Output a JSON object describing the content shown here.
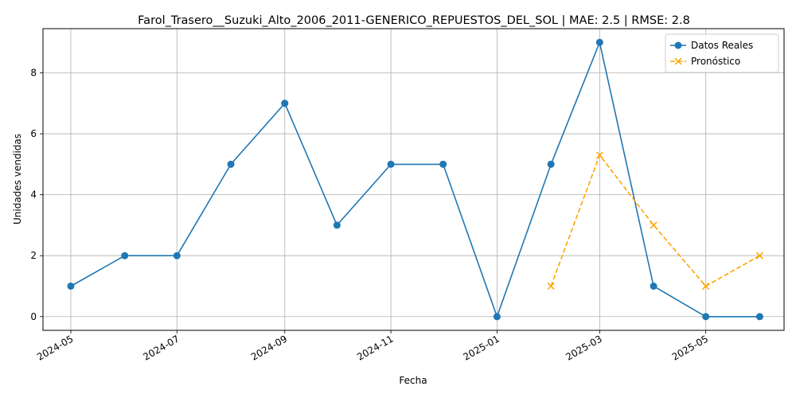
{
  "chart_data": {
    "type": "line",
    "title": "Farol_Trasero__Suzuki_Alto_2006_2011-GENERICO_REPUESTOS_DEL_SOL | MAE: 2.5 | RMSE: 2.8",
    "xlabel": "Fecha",
    "ylabel": "Unidades vendidas",
    "x_ticks": [
      "2024-05",
      "2024-07",
      "2024-09",
      "2024-11",
      "2025-01",
      "2025-03",
      "2025-05"
    ],
    "y_ticks": [
      0,
      2,
      4,
      6,
      8
    ],
    "xlim": [
      "2024-04-15",
      "2025-06-15"
    ],
    "ylim": [
      -0.45,
      9.45
    ],
    "grid": true,
    "legend_position": "top-right",
    "series": [
      {
        "name": "Datos Reales",
        "color": "#1f77b4",
        "line_style": "solid",
        "marker": "circle",
        "points": [
          {
            "x": "2024-05-01",
            "y": 1
          },
          {
            "x": "2024-06-01",
            "y": 2
          },
          {
            "x": "2024-07-01",
            "y": 2
          },
          {
            "x": "2024-08-01",
            "y": 5
          },
          {
            "x": "2024-09-01",
            "y": 7
          },
          {
            "x": "2024-10-01",
            "y": 3
          },
          {
            "x": "2024-11-01",
            "y": 5
          },
          {
            "x": "2024-12-01",
            "y": 5
          },
          {
            "x": "2025-01-01",
            "y": 0
          },
          {
            "x": "2025-02-01",
            "y": 5
          },
          {
            "x": "2025-03-01",
            "y": 9
          },
          {
            "x": "2025-04-01",
            "y": 1
          },
          {
            "x": "2025-05-01",
            "y": 0
          },
          {
            "x": "2025-06-01",
            "y": 0
          }
        ]
      },
      {
        "name": "Pronóstico",
        "color": "#ffa500",
        "line_style": "dashed",
        "marker": "x",
        "points": [
          {
            "x": "2025-02-01",
            "y": 1
          },
          {
            "x": "2025-03-01",
            "y": 5.3
          },
          {
            "x": "2025-04-01",
            "y": 3
          },
          {
            "x": "2025-05-01",
            "y": 1
          },
          {
            "x": "2025-06-01",
            "y": 2
          }
        ]
      }
    ]
  }
}
